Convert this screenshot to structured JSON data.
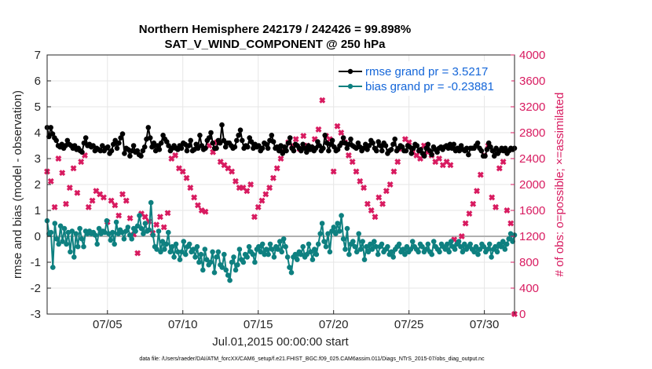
{
  "chart_data": {
    "type": "line",
    "title": "Northern Hemisphere 242179 / 242426 = 99.898%",
    "subtitle": "SAT_V_WIND_COMPONENT @ 250 hPa",
    "xlabel": "Jul.01,2015 00:00:00 start",
    "ylabel": "rmse and bias (model - observation)",
    "ylabel_right": "# of obs: o=possible; ×=assimilated",
    "footer": "data file: /Users/raeder/DAI/ATM_forcXX/CAM6_setup/f.e21.FHIST_BGC.f09_025.CAM6assim.011/Diags_NTrS_2015-07/obs_diag_output.nc",
    "x_ticks": [
      {
        "day": 5,
        "label": "07/05"
      },
      {
        "day": 10,
        "label": "07/10"
      },
      {
        "day": 15,
        "label": "07/15"
      },
      {
        "day": 20,
        "label": "07/20"
      },
      {
        "day": 25,
        "label": "07/25"
      },
      {
        "day": 30,
        "label": "07/30"
      }
    ],
    "xlim": [
      1,
      32
    ],
    "ylim": [
      -3,
      7
    ],
    "y_ticks": [
      "-3",
      "-2",
      "-1",
      "0",
      "1",
      "2",
      "3",
      "4",
      "5",
      "6",
      "7"
    ],
    "ylim_right": [
      0,
      4000
    ],
    "y_ticks_right": [
      "0",
      "400",
      "800",
      "1200",
      "1600",
      "2000",
      "2400",
      "2800",
      "3200",
      "3600",
      "4000"
    ],
    "grid": true,
    "zero_line": 0,
    "legend_position": "top-right",
    "series": [
      {
        "name": "rmse grand pr = 3.5217",
        "color": "#000000",
        "values": [
          4.2,
          3.85,
          4.2,
          3.95,
          3.8,
          3.7,
          3.5,
          3.45,
          3.55,
          3.4,
          3.5,
          3.7,
          3.55,
          3.5,
          3.4,
          3.5,
          3.35,
          3.4,
          3.3,
          3.25,
          3.6,
          3.8,
          3.5,
          3.55,
          3.45,
          3.5,
          3.3,
          3.4,
          3.35,
          3.3,
          3.5,
          3.3,
          3.4,
          3.45,
          3.2,
          3.3,
          3.55,
          3.7,
          3.4,
          3.6,
          3.8,
          3.95,
          3.2,
          3.4,
          3.35,
          3.1,
          3.3,
          3.5,
          3.25,
          3.3,
          3.15,
          3.1,
          3.3,
          3.45,
          3.75,
          4.2,
          3.8,
          3.45,
          3.6,
          3.3,
          3.5,
          3.35,
          3.6,
          3.9,
          3.75,
          3.65,
          3.5,
          3.3,
          3.4,
          3.5,
          3.4,
          3.35,
          3.5,
          3.4,
          3.6,
          3.55,
          3.3,
          3.5,
          3.7,
          3.3,
          3.35,
          3.55,
          3.4,
          3.9,
          3.5,
          3.35,
          3.4,
          3.7,
          3.8,
          4.0,
          3.6,
          3.4,
          3.4,
          3.7,
          3.6,
          4.3,
          3.7,
          3.45,
          3.6,
          3.6,
          3.5,
          3.4,
          3.45,
          3.7,
          3.9,
          4.1,
          3.7,
          3.4,
          3.5,
          3.45,
          3.8,
          3.65,
          3.4,
          3.55,
          3.45,
          3.5,
          3.3,
          3.4,
          3.6,
          3.55,
          3.4,
          3.7,
          3.9,
          3.65,
          3.4,
          3.45,
          3.3,
          3.5,
          3.2,
          3.45,
          3.3,
          3.6,
          3.8,
          3.4,
          3.3,
          3.55,
          3.5,
          3.4,
          3.3,
          3.55,
          3.4,
          3.25,
          3.5,
          3.35,
          3.45,
          3.3,
          3.4,
          3.65,
          3.5,
          3.3,
          3.4,
          3.9,
          3.6,
          3.3,
          3.55,
          3.7,
          3.45,
          3.3,
          3.35,
          3.5,
          3.6,
          3.8,
          3.6,
          3.4,
          3.55,
          3.75,
          3.5,
          3.45,
          3.4,
          3.6,
          3.45,
          3.3,
          3.4,
          3.55,
          3.35,
          3.5,
          3.7,
          3.6,
          3.4,
          3.3,
          3.65,
          3.5,
          3.3,
          3.6,
          3.5,
          3.2,
          3.3,
          3.35,
          3.55,
          3.75,
          3.3,
          3.4,
          3.5,
          3.45,
          3.3,
          3.3,
          3.5,
          3.45,
          3.2,
          3.4,
          3.55,
          3.5,
          3.3,
          3.35,
          3.2,
          3.1,
          3.4,
          3.55,
          3.3,
          3.15,
          3.45,
          3.35,
          3.25,
          3.4,
          3.45,
          3.35,
          3.45,
          3.5,
          3.4,
          3.55,
          3.4,
          3.55,
          3.3,
          3.4,
          3.3,
          3.5,
          3.35,
          3.3,
          3.4,
          3.15,
          3.4,
          3.4,
          3.4,
          3.5,
          3.6,
          3.4,
          3.3,
          3.1,
          3.1,
          3.35,
          3.6,
          3.45,
          3.3,
          3.1,
          3.4,
          3.2,
          3.3,
          3.4,
          3.3,
          3.4,
          3.2,
          3.3,
          3.4,
          3.35,
          3.4
        ]
      },
      {
        "name": "bias grand pr = -0.23881",
        "color": "#0e8080",
        "values": [
          0.6,
          0.1,
          0.15,
          -1.2,
          0.5,
          -0.1,
          -0.3,
          0.4,
          -0.2,
          0.3,
          -0.3,
          0.15,
          -0.6,
          0.2,
          -0.8,
          0.1,
          -0.4,
          0.3,
          -0.1,
          -0.4,
          0.2,
          0.1,
          0.2,
          0.1,
          0.15,
          0.05,
          -0.3,
          0.3,
          0.1,
          0.2,
          0.15,
          0.6,
          0.1,
          -0.15,
          0.15,
          -0.3,
          0.55,
          0.1,
          0.25,
          0.15,
          -0.1,
          0.2,
          0.35,
          0.05,
          -0.1,
          0.3,
          0.2,
          0.4,
          0.8,
          0.3,
          0.1,
          0.5,
          0.2,
          0.25,
          1.3,
          0.05,
          -0.4,
          -0.5,
          0.2,
          -0.6,
          -0.2,
          -0.5,
          -0.3,
          0.15,
          -0.6,
          -0.4,
          -0.8,
          -0.3,
          -0.6,
          -0.9,
          -0.6,
          -0.2,
          -0.7,
          -0.4,
          -0.3,
          -0.6,
          -0.5,
          -0.8,
          -0.4,
          -1.0,
          -0.7,
          -1.3,
          -0.5,
          -0.9,
          -1.1,
          -1.0,
          -0.6,
          -1.4,
          -0.8,
          -0.6,
          -1.1,
          -1.2,
          -0.7,
          -1.3,
          -1.5,
          -1.7,
          -1.0,
          -0.8,
          -1.3,
          -1.1,
          -0.5,
          -0.9,
          -1.0,
          -0.7,
          -0.8,
          -0.4,
          -0.6,
          -0.7,
          -1.0,
          -0.5,
          -0.4,
          -0.6,
          -0.3,
          -0.7,
          -0.5,
          -0.7,
          -0.3,
          -0.5,
          -0.8,
          -0.4,
          -0.5,
          -0.2,
          -0.6,
          -0.1,
          -0.4,
          -0.8,
          -1.2,
          -1.4,
          -0.8,
          -0.7,
          -0.9,
          -0.6,
          -0.7,
          -0.4,
          -0.8,
          -0.7,
          -0.3,
          -0.6,
          -0.9,
          -0.5,
          -0.7,
          -0.3,
          0.1,
          0.5,
          -0.2,
          -0.4,
          0.1,
          -0.6,
          0.2,
          0.35,
          0.1,
          0.5,
          0.2,
          0.8,
          -0.1,
          -0.5,
          0.3,
          -0.7,
          -0.3,
          -0.2,
          -0.4,
          -0.6,
          0.1,
          -0.5,
          -0.2,
          -0.9,
          -0.4,
          -0.6,
          -0.3,
          -0.5,
          -0.2,
          -0.4,
          -0.7,
          -0.4,
          -0.3,
          -0.6,
          -0.5,
          -0.4,
          -0.7,
          -0.6,
          -0.8,
          -0.5,
          -0.4,
          -0.3,
          -0.6,
          -0.5,
          -0.7,
          -0.4,
          -0.6,
          -0.5,
          -0.2,
          -0.4,
          -0.5,
          -0.6,
          -0.3,
          -0.4,
          -0.6,
          -0.5,
          -0.3,
          -0.6,
          -0.7,
          -0.2,
          -0.4,
          -0.5,
          -0.6,
          -0.3,
          -0.4,
          -0.5,
          -0.3,
          -0.6,
          -0.2,
          -0.4,
          -0.5,
          -0.3,
          -0.2,
          -0.4,
          -0.6,
          -0.3,
          -0.5,
          -0.4,
          -0.3,
          -0.5,
          -0.6,
          -0.4,
          -0.7,
          -0.5,
          -0.3,
          -0.4,
          -0.6,
          -0.5,
          -0.3,
          -0.8,
          -0.5,
          -0.4,
          -0.6,
          -0.3,
          -0.4,
          -0.2,
          -0.5,
          -0.3,
          -0.1,
          0.1,
          -0.2,
          0.05
        ]
      }
    ],
    "obs_series": {
      "name": "# of obs (assimilated)",
      "color": "#d81b60",
      "points": [
        {
          "day": 1.0,
          "n": 2200
        },
        {
          "day": 1.25,
          "n": 2050
        },
        {
          "day": 1.5,
          "n": 1650
        },
        {
          "day": 1.75,
          "n": 2400
        },
        {
          "day": 2.0,
          "n": 2180
        },
        {
          "day": 2.25,
          "n": 1700
        },
        {
          "day": 2.5,
          "n": 1950
        },
        {
          "day": 2.75,
          "n": 2250
        },
        {
          "day": 3.0,
          "n": 1870
        },
        {
          "day": 3.25,
          "n": 2350
        },
        {
          "day": 3.5,
          "n": 2450
        },
        {
          "day": 3.75,
          "n": 1650
        },
        {
          "day": 4.0,
          "n": 1750
        },
        {
          "day": 4.25,
          "n": 1900
        },
        {
          "day": 4.5,
          "n": 1850
        },
        {
          "day": 4.75,
          "n": 1800
        },
        {
          "day": 5.0,
          "n": 1420
        },
        {
          "day": 5.25,
          "n": 1750
        },
        {
          "day": 5.5,
          "n": 1680
        },
        {
          "day": 5.75,
          "n": 1520
        },
        {
          "day": 6.0,
          "n": 1850
        },
        {
          "day": 6.25,
          "n": 1750
        },
        {
          "day": 6.5,
          "n": 1480
        },
        {
          "day": 6.75,
          "n": 1230
        },
        {
          "day": 7.0,
          "n": 940
        },
        {
          "day": 7.25,
          "n": 1550
        },
        {
          "day": 7.5,
          "n": 1500
        },
        {
          "day": 7.75,
          "n": 1430
        },
        {
          "day": 8.0,
          "n": 1250
        },
        {
          "day": 8.25,
          "n": 1380
        },
        {
          "day": 8.5,
          "n": 1500
        },
        {
          "day": 8.75,
          "n": 1340
        },
        {
          "day": 9.0,
          "n": 1560
        },
        {
          "day": 9.25,
          "n": 2400
        },
        {
          "day": 9.5,
          "n": 2450
        },
        {
          "day": 9.75,
          "n": 2250
        },
        {
          "day": 10.0,
          "n": 2200
        },
        {
          "day": 10.25,
          "n": 2100
        },
        {
          "day": 10.5,
          "n": 1950
        },
        {
          "day": 10.75,
          "n": 1800
        },
        {
          "day": 11.0,
          "n": 1680
        },
        {
          "day": 11.25,
          "n": 1600
        },
        {
          "day": 11.5,
          "n": 1580
        },
        {
          "day": 11.75,
          "n": 2600
        },
        {
          "day": 12.0,
          "n": 2500
        },
        {
          "day": 12.25,
          "n": 2650
        },
        {
          "day": 12.5,
          "n": 2350
        },
        {
          "day": 12.75,
          "n": 2300
        },
        {
          "day": 13.0,
          "n": 2250
        },
        {
          "day": 13.25,
          "n": 2200
        },
        {
          "day": 13.5,
          "n": 2050
        },
        {
          "day": 13.75,
          "n": 1950
        },
        {
          "day": 14.0,
          "n": 1950
        },
        {
          "day": 14.25,
          "n": 1900
        },
        {
          "day": 14.5,
          "n": 2000
        },
        {
          "day": 14.75,
          "n": 1500
        },
        {
          "day": 15.0,
          "n": 1650
        },
        {
          "day": 15.25,
          "n": 1750
        },
        {
          "day": 15.5,
          "n": 1850
        },
        {
          "day": 15.75,
          "n": 1950
        },
        {
          "day": 16.0,
          "n": 2100
        },
        {
          "day": 16.25,
          "n": 2250
        },
        {
          "day": 16.5,
          "n": 2400
        },
        {
          "day": 16.75,
          "n": 2550
        },
        {
          "day": 17.0,
          "n": 2650
        },
        {
          "day": 17.25,
          "n": 2600
        },
        {
          "day": 17.5,
          "n": 2700
        },
        {
          "day": 17.75,
          "n": 2550
        },
        {
          "day": 18.0,
          "n": 2750
        },
        {
          "day": 18.25,
          "n": 2600
        },
        {
          "day": 18.5,
          "n": 2580
        },
        {
          "day": 18.75,
          "n": 2700
        },
        {
          "day": 19.0,
          "n": 2850
        },
        {
          "day": 19.25,
          "n": 3300
        },
        {
          "day": 19.5,
          "n": 2750
        },
        {
          "day": 19.75,
          "n": 2700
        },
        {
          "day": 20.0,
          "n": 2200
        },
        {
          "day": 20.25,
          "n": 2900
        },
        {
          "day": 20.5,
          "n": 2800
        },
        {
          "day": 20.75,
          "n": 2650
        },
        {
          "day": 21.0,
          "n": 2450
        },
        {
          "day": 21.25,
          "n": 2350
        },
        {
          "day": 21.5,
          "n": 2200
        },
        {
          "day": 21.75,
          "n": 2050
        },
        {
          "day": 22.0,
          "n": 1950
        },
        {
          "day": 22.25,
          "n": 1700
        },
        {
          "day": 22.5,
          "n": 1600
        },
        {
          "day": 22.75,
          "n": 1500
        },
        {
          "day": 23.0,
          "n": 1800
        },
        {
          "day": 23.25,
          "n": 1700
        },
        {
          "day": 23.5,
          "n": 1900
        },
        {
          "day": 23.75,
          "n": 2000
        },
        {
          "day": 24.0,
          "n": 2200
        },
        {
          "day": 24.25,
          "n": 2350
        },
        {
          "day": 24.5,
          "n": 2550
        },
        {
          "day": 24.75,
          "n": 2700
        },
        {
          "day": 25.0,
          "n": 2650
        },
        {
          "day": 25.25,
          "n": 2500
        },
        {
          "day": 25.5,
          "n": 2450
        },
        {
          "day": 25.75,
          "n": 2400
        },
        {
          "day": 26.0,
          "n": 2600
        },
        {
          "day": 26.25,
          "n": 2500
        },
        {
          "day": 26.5,
          "n": 2450
        },
        {
          "day": 26.75,
          "n": 2350
        },
        {
          "day": 27.0,
          "n": 2400
        },
        {
          "day": 27.25,
          "n": 2300
        },
        {
          "day": 27.5,
          "n": 2350
        },
        {
          "day": 27.75,
          "n": 2300
        },
        {
          "day": 28.0,
          "n": 1150
        },
        {
          "day": 28.25,
          "n": 1100
        },
        {
          "day": 28.5,
          "n": 1200
        },
        {
          "day": 28.75,
          "n": 1400
        },
        {
          "day": 29.0,
          "n": 1550
        },
        {
          "day": 29.25,
          "n": 1700
        },
        {
          "day": 29.5,
          "n": 1900
        },
        {
          "day": 29.75,
          "n": 2150
        },
        {
          "day": 30.0,
          "n": 2450
        },
        {
          "day": 30.25,
          "n": 2600
        },
        {
          "day": 30.5,
          "n": 1800
        },
        {
          "day": 30.75,
          "n": 1650
        },
        {
          "day": 31.0,
          "n": 2250
        },
        {
          "day": 31.25,
          "n": 2350
        },
        {
          "day": 31.5,
          "n": 1600
        },
        {
          "day": 31.75,
          "n": 1400
        },
        {
          "day": 32.0,
          "n": 0
        }
      ]
    }
  }
}
